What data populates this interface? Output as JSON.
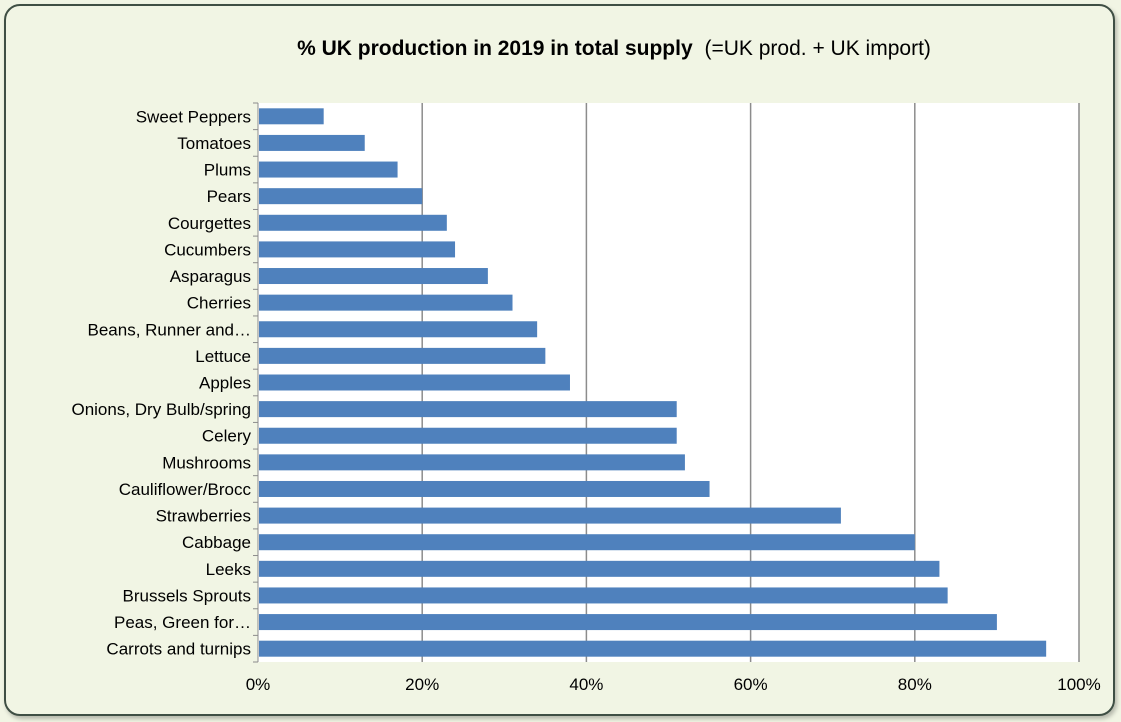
{
  "chart_data": {
    "type": "bar",
    "orientation": "horizontal",
    "title": "% UK production in 2019 in total supply",
    "subtitle": "(=UK prod. + UK import)",
    "xlabel": "",
    "ylabel": "",
    "xlim": [
      0,
      100
    ],
    "x_ticks": [
      "0%",
      "20%",
      "40%",
      "60%",
      "80%",
      "100%"
    ],
    "grid": "vertical",
    "legend": "none",
    "categories": [
      "Sweet Peppers",
      "Tomatoes",
      "Plums",
      "Pears",
      "Courgettes",
      "Cucumbers",
      "Asparagus",
      "Cherries",
      "Beans, Runner and…",
      "Lettuce",
      "Apples",
      "Onions, Dry Bulb/spring",
      "Celery",
      "Mushrooms",
      "Cauliflower/Brocc",
      "Strawberries",
      "Cabbage",
      "Leeks",
      "Brussels Sprouts",
      "Peas, Green for…",
      "Carrots and turnips"
    ],
    "values": [
      8,
      13,
      17,
      20,
      23,
      24,
      28,
      31,
      34,
      35,
      38,
      51,
      51,
      52,
      55,
      71,
      80,
      83,
      84,
      90,
      96
    ],
    "colors": {
      "bar": "#4f81bd",
      "grid": "#8c8c8c",
      "plot_bg": "#ffffff",
      "frame_bg": "#f1f5e4"
    }
  }
}
